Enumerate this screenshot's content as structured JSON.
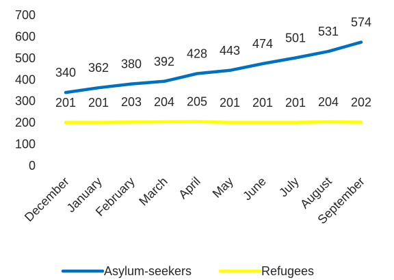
{
  "chart_data": {
    "type": "line",
    "categories": [
      "December",
      "January",
      "February",
      "March",
      "April",
      "May",
      "June",
      "July",
      "August",
      "September"
    ],
    "series": [
      {
        "name": "Asylum-seekers",
        "color": "#0070C0",
        "values": [
          340,
          362,
          380,
          392,
          428,
          443,
          474,
          501,
          531,
          574
        ]
      },
      {
        "name": "Refugees",
        "color": "#FFFF00",
        "values": [
          201,
          201,
          203,
          204,
          205,
          201,
          201,
          201,
          204,
          202
        ]
      }
    ],
    "yticks": [
      "0",
      "100",
      "200",
      "300",
      "400",
      "500",
      "600",
      "700"
    ],
    "ylim": [
      0,
      700
    ],
    "grid": false,
    "legend_position": "bottom",
    "data_labels": true
  }
}
